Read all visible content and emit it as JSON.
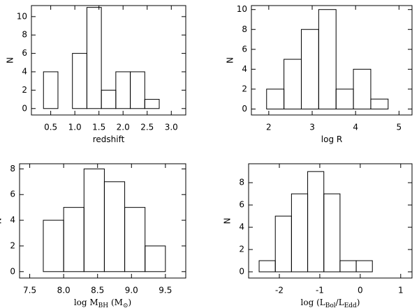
{
  "chart_data": [
    {
      "type": "histogram",
      "xlabel": [
        "redshift"
      ],
      "ylabel": "N",
      "bins": [
        0.35,
        0.65,
        0.95,
        1.25,
        1.55,
        1.85,
        2.15,
        2.45,
        2.75
      ],
      "values": [
        4,
        0,
        6,
        11,
        2,
        4,
        4,
        1
      ],
      "xlim": [
        0.1,
        3.3
      ],
      "ylim": [
        -0.7,
        11.2
      ],
      "xticks": [
        0.5,
        {
          "value": 1,
          "label": "1.0"
        },
        1.5,
        {
          "value": 2,
          "label": "2.0"
        },
        2.5,
        {
          "value": 3,
          "label": "3.0"
        }
      ],
      "yticks": [
        0,
        2,
        4,
        6,
        8,
        10
      ],
      "color": "#000000"
    },
    {
      "type": "histogram",
      "xlabel": [
        "log R"
      ],
      "ylabel": "N",
      "bins": [
        1.95,
        2.35,
        2.75,
        3.15,
        3.55,
        3.95,
        4.35,
        4.75
      ],
      "values": [
        2,
        5,
        8,
        10,
        2,
        4,
        1
      ],
      "xlim": [
        1.6,
        5.3
      ],
      "ylim": [
        -0.6,
        10.4
      ],
      "xticks": [
        2,
        3,
        4,
        5
      ],
      "yticks": [
        0,
        2,
        4,
        6,
        8,
        10
      ],
      "color": "#000000"
    },
    {
      "type": "histogram",
      "xlabel": [
        "log M",
        "BH",
        " (M",
        "⊙",
        ")"
      ],
      "ylabel": "N",
      "bins": [
        7.7,
        8.0,
        8.3,
        8.6,
        8.9,
        9.2,
        9.5
      ],
      "values": [
        4,
        5,
        8,
        7,
        5,
        2
      ],
      "xlim": [
        7.35,
        9.8
      ],
      "ylim": [
        -0.5,
        8.4
      ],
      "xticks": [
        7.5,
        {
          "value": 8,
          "label": "8.0"
        },
        8.5,
        {
          "value": 9,
          "label": "9.0"
        },
        9.5
      ],
      "yticks": [
        0,
        2,
        4,
        6,
        8
      ],
      "color": "#000000"
    },
    {
      "type": "histogram",
      "xlabel": [
        "log (L",
        "Bol",
        "/L",
        "Edd",
        ")"
      ],
      "ylabel": "N",
      "bins": [
        -2.5,
        -2.1,
        -1.7,
        -1.3,
        -0.9,
        -0.5,
        -0.1,
        0.3
      ],
      "values": [
        1,
        5,
        7,
        9,
        7,
        1,
        1
      ],
      "xlim": [
        -2.76,
        1.28
      ],
      "ylim": [
        -0.56,
        9.7
      ],
      "xticks": [
        -2,
        -1,
        0,
        1
      ],
      "yticks": [
        0,
        2,
        4,
        6,
        8
      ],
      "color": "#000000"
    }
  ]
}
